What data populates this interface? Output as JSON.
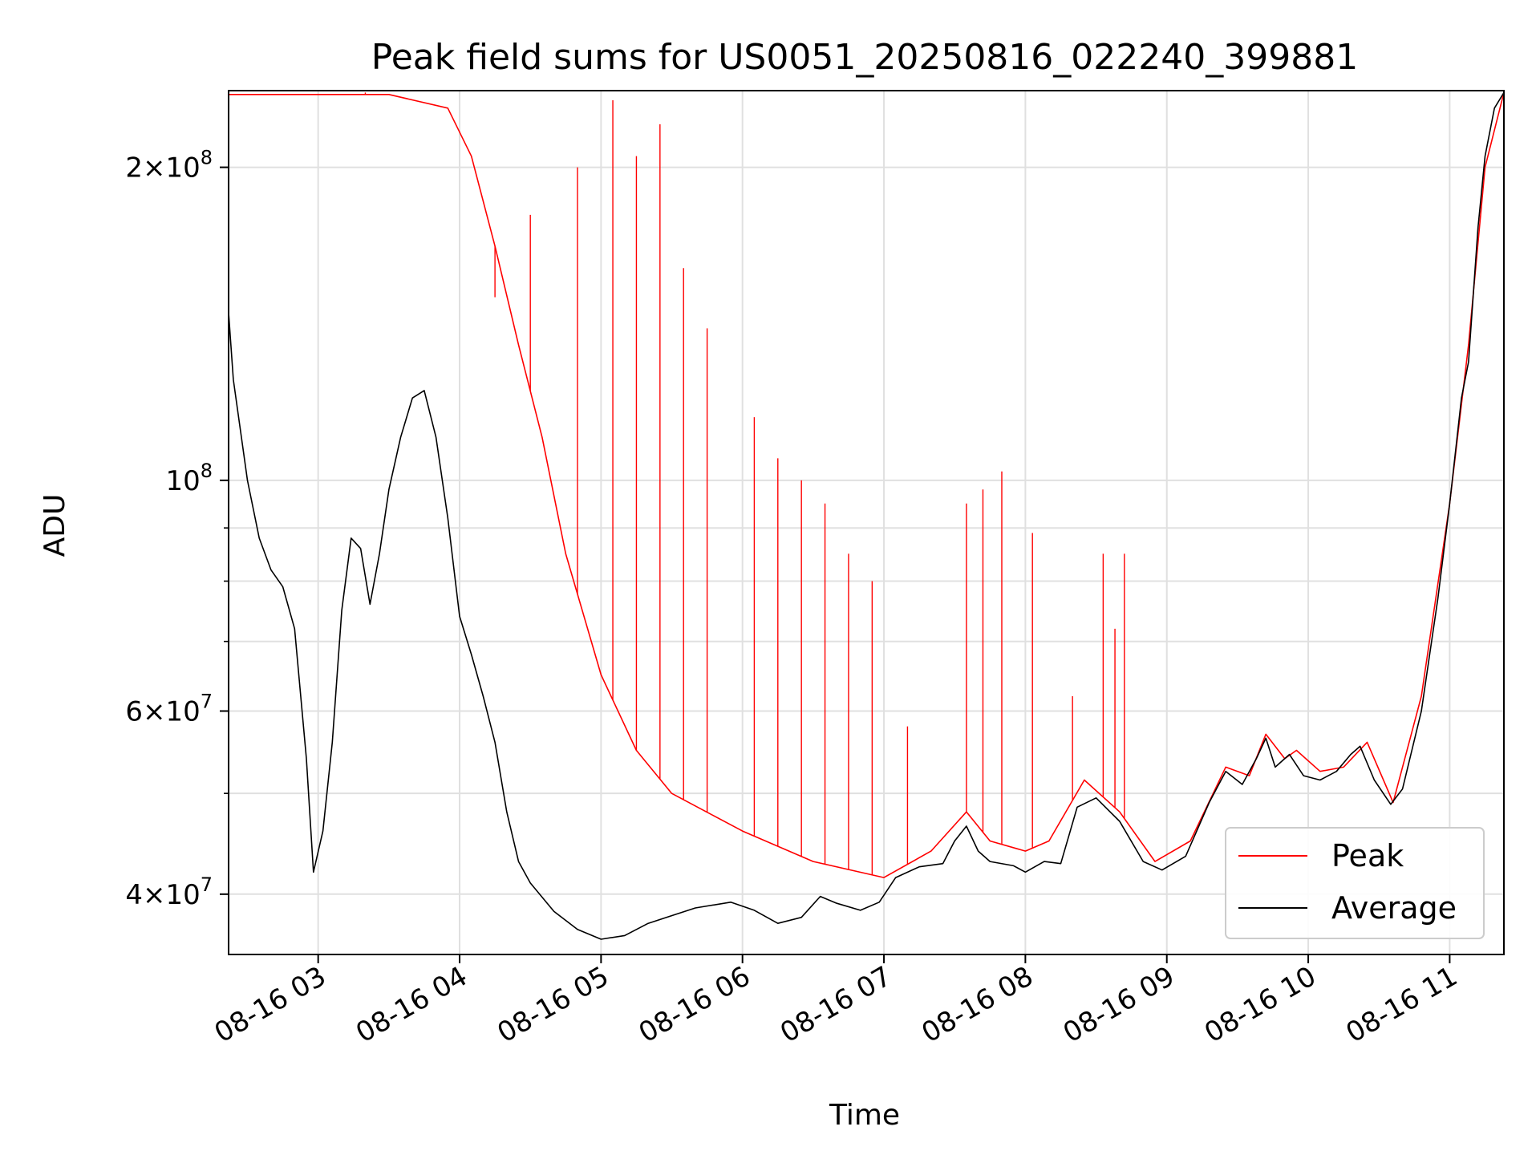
{
  "chart_data": {
    "type": "line",
    "title": "Peak field sums for US0051_20250816_022240_399881",
    "xlabel": "Time",
    "ylabel": "ADU",
    "y_scale": "log",
    "ylim": [
      35000000,
      237000000
    ],
    "xlim": [
      "2025-08-16 02:22",
      "2025-08-16 11:23"
    ],
    "x_ticks": [
      "2025-08-16 03:00",
      "2025-08-16 04:00",
      "2025-08-16 05:00",
      "2025-08-16 06:00",
      "2025-08-16 07:00",
      "2025-08-16 08:00",
      "2025-08-16 09:00",
      "2025-08-16 10:00",
      "2025-08-16 11:00"
    ],
    "x_tick_labels": [
      "08-16 03",
      "08-16 04",
      "08-16 05",
      "08-16 06",
      "08-16 07",
      "08-16 08",
      "08-16 09",
      "08-16 10",
      "08-16 11"
    ],
    "y_ticks": [
      {
        "value": 40000000,
        "mantissa": "4",
        "exponent": "7"
      },
      {
        "value": 60000000,
        "mantissa": "6",
        "exponent": "7"
      },
      {
        "value": 100000000,
        "mantissa": "",
        "exponent": "8"
      },
      {
        "value": 200000000,
        "mantissa": "2",
        "exponent": "8"
      }
    ],
    "y_minor_ticks": [
      50000000,
      70000000,
      80000000,
      90000000
    ],
    "grid": true,
    "legend_position": "lower right",
    "series": [
      {
        "name": "Peak",
        "color": "#ff0000",
        "points": [
          [
            "2025-08-16 02:22",
            235000000
          ],
          [
            "2025-08-16 02:40",
            235000000
          ],
          [
            "2025-08-16 03:00",
            235000000
          ],
          [
            "2025-08-16 03:30",
            235000000
          ],
          [
            "2025-08-16 03:55",
            228000000
          ],
          [
            "2025-08-16 04:05",
            205000000
          ],
          [
            "2025-08-16 04:15",
            168000000
          ],
          [
            "2025-08-16 04:25",
            135000000
          ],
          [
            "2025-08-16 04:35",
            110000000
          ],
          [
            "2025-08-16 04:45",
            85000000
          ],
          [
            "2025-08-16 05:00",
            65000000
          ],
          [
            "2025-08-16 05:15",
            55000000
          ],
          [
            "2025-08-16 05:30",
            50000000
          ],
          [
            "2025-08-16 06:00",
            46000000
          ],
          [
            "2025-08-16 06:30",
            43000000
          ],
          [
            "2025-08-16 07:00",
            41500000
          ],
          [
            "2025-08-16 07:20",
            44000000
          ],
          [
            "2025-08-16 07:35",
            48000000
          ],
          [
            "2025-08-16 07:45",
            45000000
          ],
          [
            "2025-08-16 08:00",
            44000000
          ],
          [
            "2025-08-16 08:10",
            45000000
          ],
          [
            "2025-08-16 08:25",
            51500000
          ],
          [
            "2025-08-16 08:40",
            48000000
          ],
          [
            "2025-08-16 08:55",
            43000000
          ],
          [
            "2025-08-16 09:10",
            45000000
          ],
          [
            "2025-08-16 09:25",
            53000000
          ],
          [
            "2025-08-16 09:35",
            52000000
          ],
          [
            "2025-08-16 09:42",
            57000000
          ],
          [
            "2025-08-16 09:50",
            54000000
          ],
          [
            "2025-08-16 09:55",
            55000000
          ],
          [
            "2025-08-16 10:05",
            52500000
          ],
          [
            "2025-08-16 10:15",
            53000000
          ],
          [
            "2025-08-16 10:25",
            56000000
          ],
          [
            "2025-08-16 10:36",
            49000000
          ],
          [
            "2025-08-16 10:48",
            62000000
          ],
          [
            "2025-08-16 11:00",
            95000000
          ],
          [
            "2025-08-16 11:08",
            135000000
          ],
          [
            "2025-08-16 11:15",
            200000000
          ],
          [
            "2025-08-16 11:23",
            236000000
          ]
        ],
        "spikes": [
          [
            "2025-08-16 03:20",
            236000000
          ],
          [
            "2025-08-16 04:15",
            150000000
          ],
          [
            "2025-08-16 04:30",
            180000000
          ],
          [
            "2025-08-16 04:50",
            200000000
          ],
          [
            "2025-08-16 05:05",
            232000000
          ],
          [
            "2025-08-16 05:15",
            205000000
          ],
          [
            "2025-08-16 05:25",
            220000000
          ],
          [
            "2025-08-16 05:35",
            160000000
          ],
          [
            "2025-08-16 05:45",
            140000000
          ],
          [
            "2025-08-16 06:05",
            115000000
          ],
          [
            "2025-08-16 06:15",
            105000000
          ],
          [
            "2025-08-16 06:25",
            100000000
          ],
          [
            "2025-08-16 06:35",
            95000000
          ],
          [
            "2025-08-16 06:45",
            85000000
          ],
          [
            "2025-08-16 06:55",
            80000000
          ],
          [
            "2025-08-16 07:10",
            58000000
          ],
          [
            "2025-08-16 07:35",
            95000000
          ],
          [
            "2025-08-16 07:42",
            98000000
          ],
          [
            "2025-08-16 07:50",
            102000000
          ],
          [
            "2025-08-16 08:03",
            89000000
          ],
          [
            "2025-08-16 08:20",
            62000000
          ],
          [
            "2025-08-16 08:33",
            85000000
          ],
          [
            "2025-08-16 08:38",
            72000000
          ],
          [
            "2025-08-16 08:42",
            85000000
          ]
        ]
      },
      {
        "name": "Average",
        "color": "#000000",
        "points": [
          [
            "2025-08-16 02:22",
            145000000
          ],
          [
            "2025-08-16 02:24",
            125000000
          ],
          [
            "2025-08-16 02:30",
            100000000
          ],
          [
            "2025-08-16 02:35",
            88000000
          ],
          [
            "2025-08-16 02:40",
            82000000
          ],
          [
            "2025-08-16 02:45",
            79000000
          ],
          [
            "2025-08-16 02:50",
            72000000
          ],
          [
            "2025-08-16 02:55",
            54000000
          ],
          [
            "2025-08-16 02:58",
            42000000
          ],
          [
            "2025-08-16 03:02",
            46000000
          ],
          [
            "2025-08-16 03:06",
            56000000
          ],
          [
            "2025-08-16 03:10",
            75000000
          ],
          [
            "2025-08-16 03:14",
            88000000
          ],
          [
            "2025-08-16 03:18",
            86000000
          ],
          [
            "2025-08-16 03:22",
            76000000
          ],
          [
            "2025-08-16 03:26",
            85000000
          ],
          [
            "2025-08-16 03:30",
            98000000
          ],
          [
            "2025-08-16 03:35",
            110000000
          ],
          [
            "2025-08-16 03:40",
            120000000
          ],
          [
            "2025-08-16 03:45",
            122000000
          ],
          [
            "2025-08-16 03:50",
            110000000
          ],
          [
            "2025-08-16 03:55",
            92000000
          ],
          [
            "2025-08-16 04:00",
            74000000
          ],
          [
            "2025-08-16 04:05",
            68000000
          ],
          [
            "2025-08-16 04:10",
            62000000
          ],
          [
            "2025-08-16 04:15",
            56000000
          ],
          [
            "2025-08-16 04:20",
            48000000
          ],
          [
            "2025-08-16 04:25",
            43000000
          ],
          [
            "2025-08-16 04:30",
            41000000
          ],
          [
            "2025-08-16 04:40",
            38500000
          ],
          [
            "2025-08-16 04:50",
            37000000
          ],
          [
            "2025-08-16 05:00",
            36200000
          ],
          [
            "2025-08-16 05:10",
            36500000
          ],
          [
            "2025-08-16 05:20",
            37500000
          ],
          [
            "2025-08-16 05:40",
            38800000
          ],
          [
            "2025-08-16 05:55",
            39300000
          ],
          [
            "2025-08-16 06:05",
            38600000
          ],
          [
            "2025-08-16 06:15",
            37500000
          ],
          [
            "2025-08-16 06:25",
            38000000
          ],
          [
            "2025-08-16 06:33",
            39800000
          ],
          [
            "2025-08-16 06:40",
            39200000
          ],
          [
            "2025-08-16 06:50",
            38600000
          ],
          [
            "2025-08-16 06:58",
            39300000
          ],
          [
            "2025-08-16 07:05",
            41500000
          ],
          [
            "2025-08-16 07:15",
            42500000
          ],
          [
            "2025-08-16 07:25",
            42800000
          ],
          [
            "2025-08-16 07:30",
            45000000
          ],
          [
            "2025-08-16 07:35",
            46500000
          ],
          [
            "2025-08-16 07:40",
            44000000
          ],
          [
            "2025-08-16 07:45",
            43000000
          ],
          [
            "2025-08-16 07:55",
            42600000
          ],
          [
            "2025-08-16 08:00",
            42000000
          ],
          [
            "2025-08-16 08:08",
            43000000
          ],
          [
            "2025-08-16 08:15",
            42800000
          ],
          [
            "2025-08-16 08:22",
            48500000
          ],
          [
            "2025-08-16 08:30",
            49500000
          ],
          [
            "2025-08-16 08:40",
            47000000
          ],
          [
            "2025-08-16 08:50",
            43000000
          ],
          [
            "2025-08-16 08:58",
            42200000
          ],
          [
            "2025-08-16 09:08",
            43500000
          ],
          [
            "2025-08-16 09:18",
            49000000
          ],
          [
            "2025-08-16 09:25",
            52500000
          ],
          [
            "2025-08-16 09:32",
            51000000
          ],
          [
            "2025-08-16 09:38",
            54000000
          ],
          [
            "2025-08-16 09:42",
            56500000
          ],
          [
            "2025-08-16 09:46",
            53000000
          ],
          [
            "2025-08-16 09:52",
            54500000
          ],
          [
            "2025-08-16 09:58",
            52000000
          ],
          [
            "2025-08-16 10:05",
            51500000
          ],
          [
            "2025-08-16 10:12",
            52500000
          ],
          [
            "2025-08-16 10:18",
            54500000
          ],
          [
            "2025-08-16 10:22",
            55500000
          ],
          [
            "2025-08-16 10:28",
            51500000
          ],
          [
            "2025-08-16 10:35",
            48800000
          ],
          [
            "2025-08-16 10:40",
            50500000
          ],
          [
            "2025-08-16 10:48",
            60000000
          ],
          [
            "2025-08-16 10:55",
            77000000
          ],
          [
            "2025-08-16 11:00",
            95000000
          ],
          [
            "2025-08-16 11:05",
            120000000
          ],
          [
            "2025-08-16 11:08",
            130000000
          ],
          [
            "2025-08-16 11:12",
            175000000
          ],
          [
            "2025-08-16 11:15",
            205000000
          ],
          [
            "2025-08-16 11:19",
            228000000
          ],
          [
            "2025-08-16 11:23",
            236000000
          ]
        ]
      }
    ]
  }
}
